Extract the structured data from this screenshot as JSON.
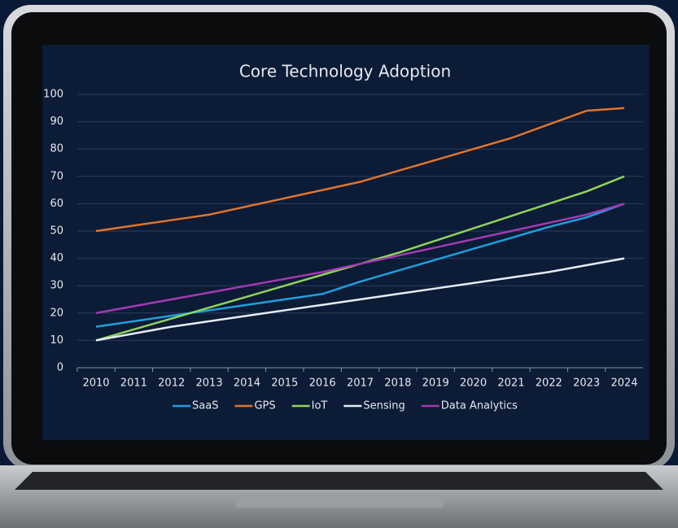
{
  "chart_data": {
    "type": "line",
    "title": "Core Technology Adoption",
    "categories": [
      "2010",
      "2011",
      "2012",
      "2013",
      "2014",
      "2015",
      "2016",
      "2017",
      "2018",
      "2019",
      "2020",
      "2021",
      "2022",
      "2023",
      "2024"
    ],
    "ylim": [
      0,
      100
    ],
    "yticks": [
      0,
      10,
      20,
      30,
      40,
      50,
      60,
      70,
      80,
      90,
      100
    ],
    "grid": true,
    "legend": "bottom",
    "series": [
      {
        "name": "SaaS",
        "color": "#1e9fe0",
        "values": [
          15,
          17,
          19,
          21,
          23,
          25,
          27,
          31.5,
          35.5,
          39.5,
          43.5,
          47.5,
          51.5,
          55,
          60
        ]
      },
      {
        "name": "GPS",
        "color": "#e0742c",
        "values": [
          50,
          52,
          54,
          56,
          59,
          62,
          65,
          68,
          72,
          76,
          80,
          84,
          89,
          94,
          95
        ]
      },
      {
        "name": "IoT",
        "color": "#8fd45a",
        "values": [
          10,
          14,
          18,
          22,
          26,
          30,
          34,
          38,
          42,
          46.5,
          51,
          55.5,
          60,
          64.5,
          70
        ]
      },
      {
        "name": "Sensing",
        "color": "#e4ecf4",
        "values": [
          10,
          12.5,
          15,
          17,
          19,
          21,
          23,
          25,
          27,
          29,
          31,
          33,
          35,
          37.5,
          40
        ]
      },
      {
        "name": "Data Analytics",
        "color": "#a43ab0",
        "values": [
          20,
          22.5,
          25,
          27.5,
          30,
          32.5,
          35,
          38,
          41,
          44,
          47,
          50,
          53,
          56,
          60
        ]
      }
    ]
  }
}
